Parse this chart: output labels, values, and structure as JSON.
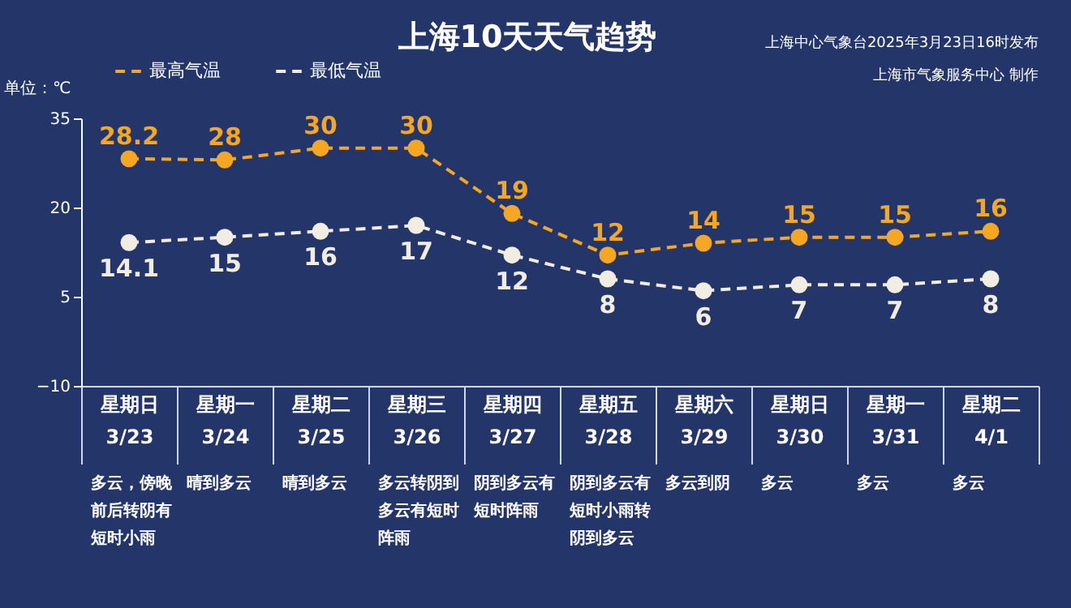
{
  "chart_data": {
    "type": "line",
    "title": "上海10天天气趋势",
    "ylabel": "单位：℃",
    "categories": [
      "星期日 3/23",
      "星期一 3/24",
      "星期二 3/25",
      "星期三 3/26",
      "星期四 3/27",
      "星期五 3/28",
      "星期六 3/29",
      "星期日 3/30",
      "星期一 3/31",
      "星期二 4/1"
    ],
    "series": [
      {
        "name": "最高气温",
        "color": "#f5a623",
        "values": [
          28.2,
          28,
          30,
          30,
          19,
          12,
          14,
          15,
          15,
          16
        ]
      },
      {
        "name": "最低气温",
        "color": "#f2ede2",
        "values": [
          14.1,
          15,
          16,
          17,
          12,
          8,
          6,
          7,
          7,
          8
        ]
      }
    ],
    "ylim": [
      -10,
      35
    ],
    "yticks": [
      -10,
      5,
      20,
      35
    ],
    "grid": false,
    "legend": "top left",
    "marker": "circle",
    "line_style": "dashed",
    "data_labels": true,
    "annotations": [
      "上海中心气象台2025年3月23日16时发布",
      "上海市气象服务中心 制作",
      "多云，傍晚前后转阴有短时小雨",
      "晴到多云",
      "晴到多云",
      "多云转阴到多云有短时阵雨",
      "阴到多云有短时阵雨",
      "阴到多云有短时小雨转阴到多云",
      "多云到阴",
      "多云",
      "多云",
      "多云"
    ]
  }
}
